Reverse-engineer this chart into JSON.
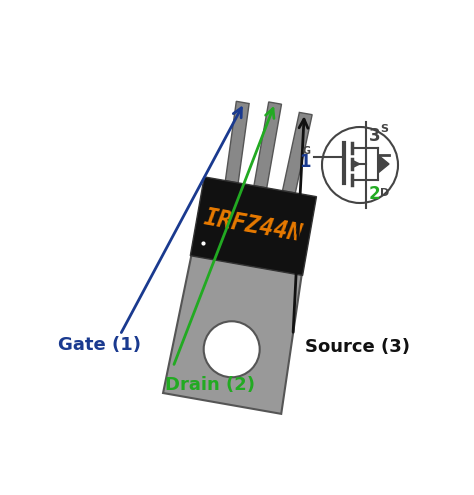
{
  "bg_color": "#ffffff",
  "mosfet_body_color": "#111111",
  "heatsink_color": "#999999",
  "heatsink_edge": "#555555",
  "lead_color": "#888888",
  "lead_edge": "#555555",
  "text_irfz44n_color": "#e87a00",
  "gate_label_color": "#1a3a8f",
  "drain_label_color": "#22aa22",
  "source_label_color": "#111111",
  "arrow_gate_color": "#1a3a8f",
  "arrow_drain_color": "#22aa22",
  "arrow_source_color": "#111111",
  "gate_text": "Gate (1)",
  "drain_text": "Drain (2)",
  "source_text": "Source (3)",
  "mosfet_label": "IRFZ44N",
  "sym_line_color": "#444444",
  "drain_num_color": "#22aa22",
  "gate_num_color": "#1a3a8f"
}
